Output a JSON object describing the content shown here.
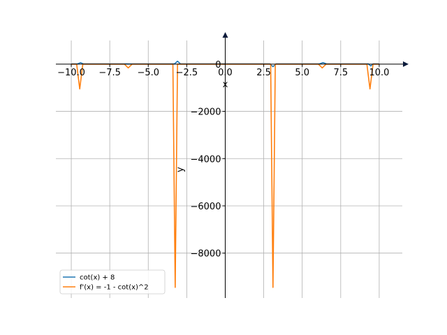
{
  "chart_data": {
    "type": "line",
    "xlabel": "x",
    "ylabel": "y",
    "xlim": [
      -11.0,
      11.5
    ],
    "ylim": [
      -9900,
      1000
    ],
    "x_ticks": [
      -10.0,
      -7.5,
      -5.0,
      -2.5,
      0.0,
      2.5,
      5.0,
      7.5,
      10.0
    ],
    "x_tick_labels": [
      "−10.0",
      "−7.5",
      "−5.0",
      "−2.5",
      "0.0",
      "2.5",
      "5.0",
      "7.5",
      "10.0"
    ],
    "y_ticks": [
      0,
      -2000,
      -4000,
      -6000,
      -8000
    ],
    "y_tick_labels": [
      "0",
      "−2000",
      "−4000",
      "−6000",
      "−8000"
    ],
    "grid": true,
    "legend_position": "lower-left",
    "series": [
      {
        "name": "cot(x) + 8",
        "color": "#1f77b4",
        "x": [
          -10.0,
          -9.6,
          -9.4,
          -9.2,
          -8.0,
          -6.4,
          -6.2,
          -6.0,
          -4.0,
          -3.3,
          -3.1,
          -2.9,
          -1.0,
          -0.1,
          0.1,
          1.0,
          2.9,
          3.1,
          3.3,
          5.0,
          6.1,
          6.35,
          6.6,
          8.0,
          9.3,
          9.45,
          9.6,
          10.0
        ],
        "values": [
          8,
          8,
          60,
          8,
          8,
          8,
          5,
          8,
          8,
          8,
          120,
          8,
          8,
          8,
          8,
          8,
          8,
          -110,
          8,
          8,
          8,
          60,
          8,
          8,
          8,
          -80,
          8,
          8
        ]
      },
      {
        "name": "f'(x) = -1 - cot(x)^2",
        "color": "#ff7f0e",
        "x": [
          -10.0,
          -9.65,
          -9.45,
          -9.25,
          -8.0,
          -6.55,
          -6.3,
          -6.05,
          -4.0,
          -3.4,
          -3.25,
          -3.1,
          -1.0,
          -0.15,
          0.15,
          1.0,
          2.95,
          3.1,
          3.25,
          5.0,
          6.05,
          6.3,
          6.55,
          8.0,
          9.2,
          9.4,
          9.6,
          10.0
        ],
        "values": [
          -1,
          -1,
          -1050,
          -1,
          -1,
          -1,
          -160,
          -1,
          -1,
          -1,
          -9450,
          -1,
          -1,
          -1,
          -1,
          -1,
          -1,
          -9450,
          -1,
          -1,
          -1,
          -160,
          -1,
          -1,
          -1,
          -1050,
          -1,
          -1
        ]
      }
    ]
  }
}
